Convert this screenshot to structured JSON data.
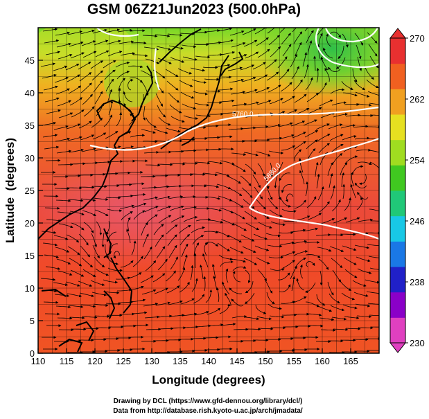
{
  "title": "GSM 06Z21Jun2023 (500.0hPa)",
  "x_axis": {
    "label": "Longitude (degrees)",
    "min": 110,
    "max": 170,
    "ticks": [
      110,
      115,
      120,
      125,
      130,
      135,
      140,
      145,
      150,
      155,
      160,
      165
    ]
  },
  "y_axis": {
    "label": "Latitude  (degrees)",
    "min": 0,
    "max": 50,
    "ticks": [
      0,
      5,
      10,
      15,
      20,
      25,
      30,
      35,
      40,
      45
    ]
  },
  "colorbar": {
    "labels": [
      270,
      262,
      254,
      246,
      238,
      230
    ],
    "min": 230,
    "max": 270,
    "colors": [
      "#e040c0",
      "#8a00c8",
      "#2020c8",
      "#1a78e6",
      "#18c8e6",
      "#20c878",
      "#40c820",
      "#a0dc20",
      "#e6e020",
      "#f0a020",
      "#f06020",
      "#e83030"
    ]
  },
  "contours": [
    {
      "label": "5760.0"
    },
    {
      "label": "5880.0"
    }
  ],
  "credit": {
    "line1": "Drawing by DCL (https://www.gfd-dennou.org/library/dcl/)",
    "line2": "Data from http://database.rish.kyoto-u.ac.jp/arch/jmadata/"
  }
}
